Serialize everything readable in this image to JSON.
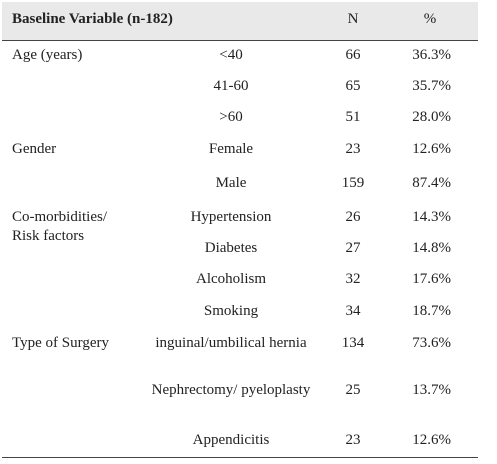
{
  "header": [
    "Baseline Variable (n-182)",
    "N",
    "%"
  ],
  "groups": [
    {
      "label": "Age (years)",
      "rows": [
        [
          "<40",
          66,
          "36.3%"
        ],
        [
          "41-60",
          65,
          "35.7%"
        ],
        [
          ">60",
          51,
          "28.0%"
        ]
      ]
    },
    {
      "label": "Gender",
      "rows": [
        [
          "Female",
          23,
          "12.6%"
        ],
        [
          "Male",
          159,
          "87.4%"
        ]
      ]
    },
    {
      "label": "Co-morbidities/ Risk factors",
      "rows": [
        [
          "Hypertension",
          26,
          "14.3%"
        ],
        [
          "Diabetes",
          27,
          "14.8%"
        ],
        [
          "Alcoholism",
          32,
          "17.6%"
        ],
        [
          "Smoking",
          34,
          "18.7%"
        ]
      ]
    },
    {
      "label": "Type of Surgery",
      "rows": [
        [
          "inguinal/umbilical hernia",
          134,
          "73.6%"
        ],
        [
          "Nephrectomy/ pyeloplasty",
          25,
          "13.7%"
        ],
        [
          "Appendicitis",
          23,
          "12.6%"
        ]
      ]
    }
  ]
}
